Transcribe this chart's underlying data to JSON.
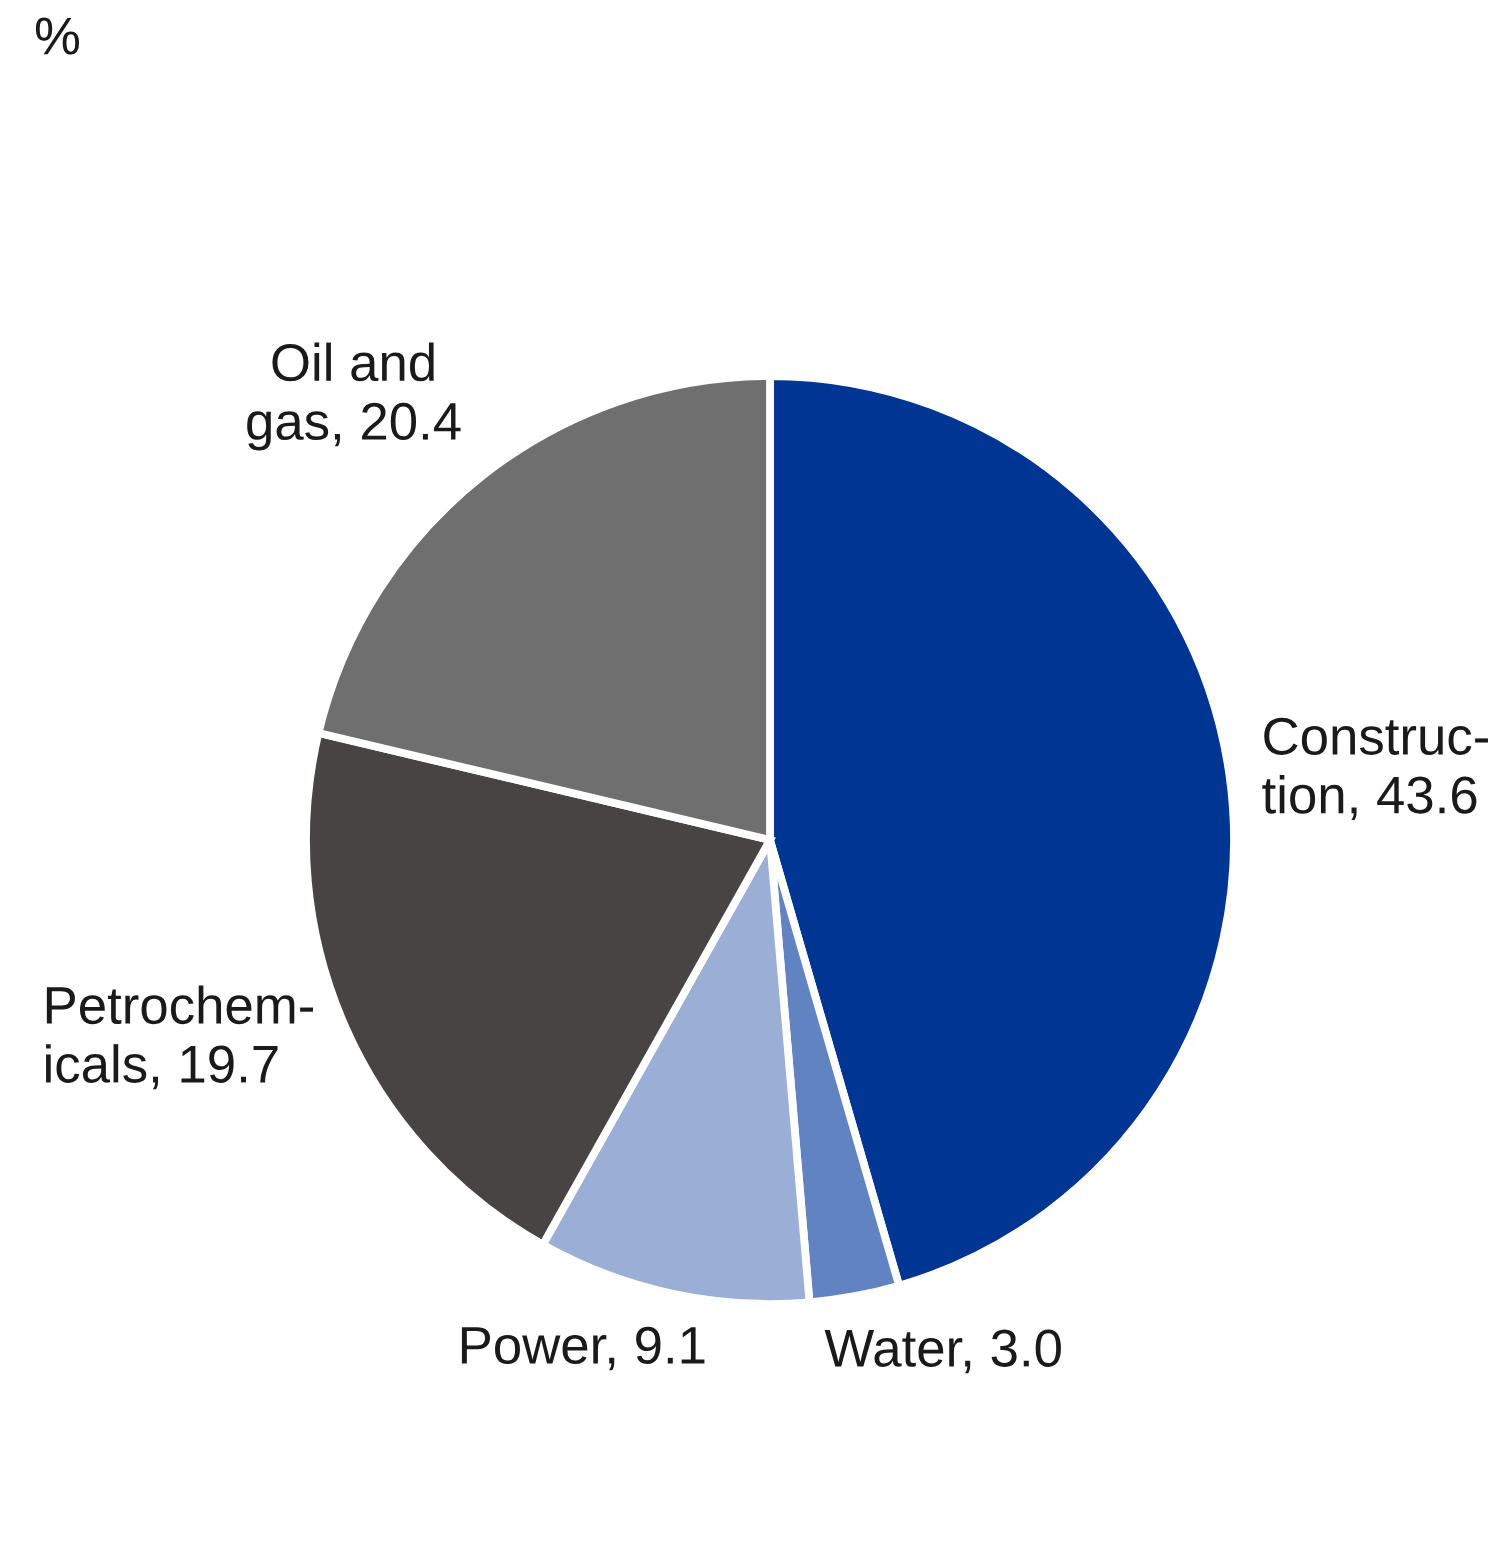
{
  "chart_data": {
    "type": "pie",
    "categories": [
      "Construc-\ntion, 43.6",
      "Water, 3.0",
      "Power, 9.1",
      "Petrochem-\nicals, 19.7",
      "Oil and\ngas, 20.4"
    ],
    "values": [
      43.6,
      3.0,
      9.1,
      19.7,
      20.4
    ],
    "colors": [
      "#003594",
      "#6183c2",
      "#9aaed6",
      "#484444",
      "#6f6f6f"
    ],
    "annotations": [
      "%"
    ]
  }
}
